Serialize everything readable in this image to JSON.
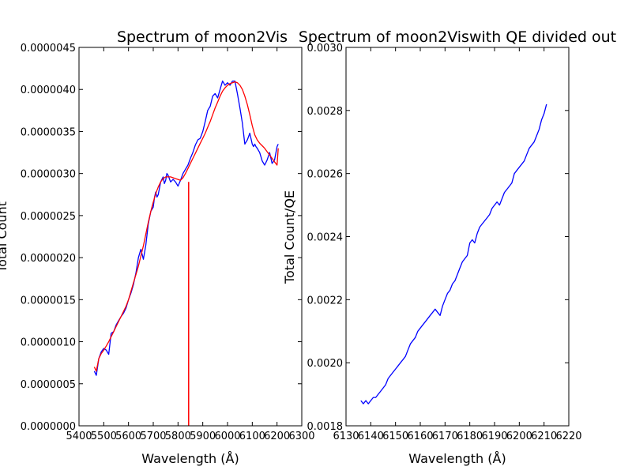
{
  "colors": {
    "series": "#0000ff",
    "fit": "#ff0000",
    "axes": "#000000",
    "background": "#ffffff"
  },
  "chart_data": [
    {
      "type": "line",
      "title": "Spectrum of moon2Vis",
      "xlabel": "Wavelength (Å)",
      "ylabel": "Total Count",
      "xlim": [
        5400,
        6300
      ],
      "ylim": [
        0,
        4.5e-06
      ],
      "xticks": [
        5400,
        5500,
        5600,
        5700,
        5800,
        5900,
        6000,
        6100,
        6200,
        6300
      ],
      "yticks": [
        0,
        5e-07,
        1e-06,
        1.5e-06,
        2e-06,
        2.5e-06,
        3e-06,
        3.5e-06,
        4e-06,
        4.5e-06
      ],
      "xtick_labels": [
        "5400",
        "5500",
        "5600",
        "5700",
        "5800",
        "5900",
        "6000",
        "6100",
        "6200",
        "6300"
      ],
      "ytick_labels": [
        "0.0000000",
        "0.0000005",
        "0.0000010",
        "0.0000015",
        "0.0000020",
        "0.0000025",
        "0.0000030",
        "0.0000035",
        "0.0000040",
        "0.0000045"
      ],
      "grid": false,
      "series": [
        {
          "style": "blue line",
          "x": [
            5462,
            5470,
            5480,
            5490,
            5500,
            5510,
            5520,
            5530,
            5540,
            5550,
            5560,
            5570,
            5580,
            5590,
            5600,
            5610,
            5620,
            5630,
            5640,
            5650,
            5660,
            5670,
            5680,
            5690,
            5700,
            5705,
            5710,
            5715,
            5720,
            5730,
            5740,
            5745,
            5750,
            5755,
            5760,
            5770,
            5780,
            5790,
            5800,
            5810,
            5820,
            5830,
            5840,
            5850,
            5860,
            5870,
            5880,
            5890,
            5900,
            5910,
            5920,
            5930,
            5940,
            5950,
            5960,
            5970,
            5980,
            5990,
            6000,
            6010,
            6020,
            6030,
            6040,
            6050,
            6060,
            6070,
            6080,
            6090,
            6100,
            6105,
            6110,
            6115,
            6120,
            6130,
            6140,
            6150,
            6160,
            6170,
            6180,
            6190,
            6200,
            6205
          ],
          "y": [
            6.5e-07,
            6e-07,
            8e-07,
            8.8e-07,
            9.2e-07,
            9e-07,
            8.5e-07,
            1.1e-06,
            1.12e-06,
            1.2e-06,
            1.25e-06,
            1.3e-06,
            1.34e-06,
            1.4e-06,
            1.5e-06,
            1.58e-06,
            1.68e-06,
            1.82e-06,
            2e-06,
            2.1e-06,
            1.98e-06,
            2.15e-06,
            2.4e-06,
            2.55e-06,
            2.6e-06,
            2.72e-06,
            2.78e-06,
            2.72e-06,
            2.75e-06,
            2.9e-06,
            2.96e-06,
            2.88e-06,
            2.92e-06,
            3e-06,
            2.98e-06,
            2.9e-06,
            2.93e-06,
            2.9e-06,
            2.85e-06,
            2.92e-06,
            3e-06,
            3.05e-06,
            3.1e-06,
            3.18e-06,
            3.25e-06,
            3.34e-06,
            3.4e-06,
            3.42e-06,
            3.5e-06,
            3.62e-06,
            3.75e-06,
            3.8e-06,
            3.92e-06,
            3.95e-06,
            3.9e-06,
            4e-06,
            4.1e-06,
            4.05e-06,
            4.08e-06,
            4.05e-06,
            4.1e-06,
            4.1e-06,
            3.95e-06,
            3.78e-06,
            3.6e-06,
            3.35e-06,
            3.4e-06,
            3.48e-06,
            3.35e-06,
            3.32e-06,
            3.35e-06,
            3.32e-06,
            3.3e-06,
            3.25e-06,
            3.15e-06,
            3.1e-06,
            3.16e-06,
            3.25e-06,
            3.12e-06,
            3.16e-06,
            3.32e-06,
            3.35e-06
          ]
        },
        {
          "style": "red fitted curve",
          "x": [
            5462,
            5470,
            5480,
            5490,
            5500,
            5510,
            5520,
            5530,
            5540,
            5550,
            5560,
            5570,
            5580,
            5590,
            5600,
            5610,
            5620,
            5630,
            5640,
            5650,
            5660,
            5670,
            5680,
            5690,
            5700,
            5710,
            5720,
            5730,
            5740,
            5750,
            5760,
            5770,
            5780,
            5790,
            5800,
            5810,
            5820,
            5830,
            5840,
            5850,
            5860,
            5870,
            5880,
            5890,
            5900,
            5910,
            5920,
            5930,
            5940,
            5950,
            5960,
            5970,
            5980,
            5990,
            6000,
            6010,
            6020,
            6030,
            6040,
            6050,
            6060,
            6070,
            6080,
            6090,
            6100,
            6110,
            6120,
            6130,
            6140,
            6150,
            6160,
            6170,
            6180,
            6190,
            6200,
            6205
          ],
          "y": [
            7e-07,
            6.5e-07,
            8e-07,
            8.6e-07,
            9e-07,
            9.5e-07,
            1e-06,
            1.06e-06,
            1.12e-06,
            1.18e-06,
            1.24e-06,
            1.3e-06,
            1.36e-06,
            1.42e-06,
            1.5e-06,
            1.6e-06,
            1.7e-06,
            1.8e-06,
            1.9e-06,
            2.02e-06,
            2.14e-06,
            2.28e-06,
            2.42e-06,
            2.55e-06,
            2.66e-06,
            2.76e-06,
            2.84e-06,
            2.9e-06,
            2.94e-06,
            2.96e-06,
            2.96e-06,
            2.96e-06,
            2.95e-06,
            2.94e-06,
            2.93e-06,
            2.92e-06,
            2.95e-06,
            3e-06,
            3.06e-06,
            3.12e-06,
            3.18e-06,
            3.24e-06,
            3.3e-06,
            3.36e-06,
            3.42e-06,
            3.48e-06,
            3.55e-06,
            3.62e-06,
            3.7e-06,
            3.78e-06,
            3.85e-06,
            3.92e-06,
            3.98e-06,
            4.02e-06,
            4.05e-06,
            4.07e-06,
            4.08e-06,
            4.09e-06,
            4.08e-06,
            4.05e-06,
            4e-06,
            3.92e-06,
            3.82e-06,
            3.7e-06,
            3.57e-06,
            3.46e-06,
            3.4e-06,
            3.36e-06,
            3.33e-06,
            3.3e-06,
            3.26e-06,
            3.22e-06,
            3.18e-06,
            3.14e-06,
            3.1e-06,
            3.3e-06
          ]
        },
        {
          "style": "red vertical line",
          "x": [
            5843,
            5843
          ],
          "y": [
            0,
            2.9e-06
          ]
        }
      ]
    },
    {
      "type": "line",
      "title": "Spectrum of moon2Viswith QE divided out",
      "xlabel": "Wavelength (Å)",
      "ylabel": "Total Count/QE",
      "xlim": [
        6130,
        6220
      ],
      "ylim": [
        0.0018,
        0.003
      ],
      "xticks": [
        6130,
        6140,
        6150,
        6160,
        6170,
        6180,
        6190,
        6200,
        6210,
        6220
      ],
      "yticks": [
        0.0018,
        0.002,
        0.0022,
        0.0024,
        0.0026,
        0.0028,
        0.003
      ],
      "xtick_labels": [
        "6130",
        "6140",
        "6150",
        "6160",
        "6170",
        "6180",
        "6190",
        "6200",
        "6210",
        "6220"
      ],
      "ytick_labels": [
        "0.0018",
        "0.0020",
        "0.0022",
        "0.0024",
        "0.0026",
        "0.0028",
        "0.0030"
      ],
      "grid": false,
      "series": [
        {
          "style": "blue line",
          "x": [
            6136,
            6137,
            6138,
            6139,
            6140,
            6141,
            6142,
            6143,
            6144,
            6145,
            6146,
            6147,
            6148,
            6149,
            6150,
            6151,
            6152,
            6153,
            6154,
            6155,
            6156,
            6157,
            6158,
            6159,
            6160,
            6161,
            6162,
            6163,
            6164,
            6165,
            6166,
            6167,
            6168,
            6169,
            6170,
            6171,
            6172,
            6173,
            6174,
            6175,
            6176,
            6177,
            6178,
            6179,
            6180,
            6181,
            6182,
            6183,
            6184,
            6185,
            6186,
            6187,
            6188,
            6189,
            6190,
            6191,
            6192,
            6193,
            6194,
            6195,
            6196,
            6197,
            6198,
            6199,
            6200,
            6201,
            6202,
            6203,
            6204,
            6205,
            6206,
            6207,
            6208,
            6209,
            6210,
            6211
          ],
          "y": [
            0.00188,
            0.00187,
            0.00188,
            0.00187,
            0.00188,
            0.00189,
            0.00189,
            0.0019,
            0.00191,
            0.00192,
            0.00193,
            0.00195,
            0.00196,
            0.00197,
            0.00198,
            0.00199,
            0.002,
            0.00201,
            0.00202,
            0.00204,
            0.00206,
            0.00207,
            0.00208,
            0.0021,
            0.00211,
            0.00212,
            0.00213,
            0.00214,
            0.00215,
            0.00216,
            0.00217,
            0.00216,
            0.00215,
            0.00218,
            0.0022,
            0.00222,
            0.00223,
            0.00225,
            0.00226,
            0.00228,
            0.0023,
            0.00232,
            0.00233,
            0.00234,
            0.00238,
            0.00239,
            0.00238,
            0.00241,
            0.00243,
            0.00244,
            0.00245,
            0.00246,
            0.00247,
            0.00249,
            0.0025,
            0.00251,
            0.0025,
            0.00252,
            0.00254,
            0.00255,
            0.00256,
            0.00257,
            0.0026,
            0.00261,
            0.00262,
            0.00263,
            0.00264,
            0.00266,
            0.00268,
            0.00269,
            0.0027,
            0.00272,
            0.00274,
            0.00277,
            0.00279,
            0.00282
          ]
        }
      ]
    }
  ]
}
